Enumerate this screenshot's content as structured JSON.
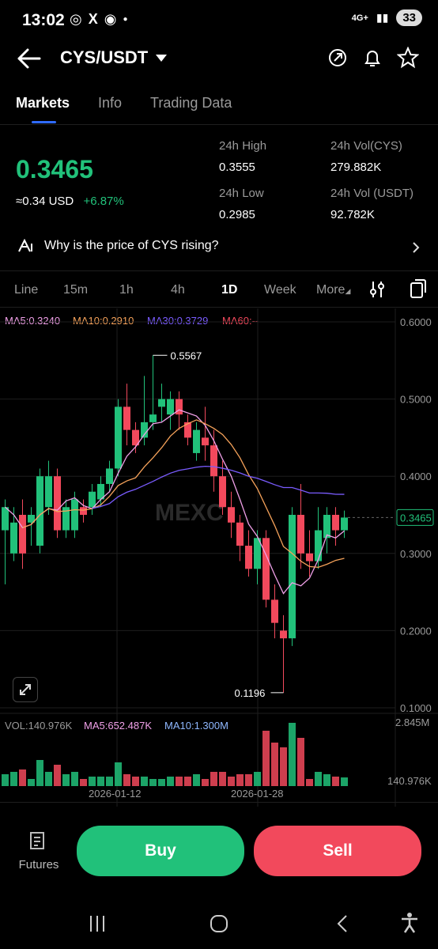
{
  "status": {
    "time": "13:02",
    "network": "4G+",
    "battery": "33"
  },
  "header": {
    "pair": "CYS/USDT"
  },
  "tabs": [
    {
      "label": "Markets"
    },
    {
      "label": "Info"
    },
    {
      "label": "Trading Data"
    }
  ],
  "price": {
    "last": "0.3465",
    "usd": "≈0.34 USD",
    "change": "+6.87%"
  },
  "stats": {
    "high_label": "24h High",
    "high": "0.3555",
    "low_label": "24h Low",
    "low": "0.2985",
    "vol_base_label": "24h Vol(CYS)",
    "vol_base": "279.882K",
    "vol_quote_label": "24h Vol (USDT)",
    "vol_quote": "92.782K"
  },
  "why_text": "Why is the price of CYS rising?",
  "timeframes": [
    {
      "label": "Line"
    },
    {
      "label": "15m"
    },
    {
      "label": "1h"
    },
    {
      "label": "4h"
    },
    {
      "label": "1D"
    },
    {
      "label": "Week"
    },
    {
      "label": "More"
    }
  ],
  "ma": {
    "ma5": "MA5:0.3240",
    "ma10": "MA10:0.2910",
    "ma30": "MA30:0.3729",
    "ma60": "MA60:--"
  },
  "watermark": "MEXC",
  "chart_data": {
    "type": "candlestick",
    "y_ticks": [
      "0.6000",
      "0.5000",
      "0.4000",
      "0.3000",
      "0.2000",
      "0.1000"
    ],
    "ylim": [
      0.1,
      0.6
    ],
    "high_annotation": "0.5567",
    "low_annotation": "0.1196",
    "last_price": "0.3465",
    "x_ticks": [
      "2026-01-12",
      "2026-01-28"
    ],
    "colors": {
      "up": "#21c17a",
      "down": "#f2495c",
      "ma5": "#f0a0e8",
      "ma10": "#f5a25a",
      "ma30": "#7a5cff"
    },
    "candles": [
      [
        0.33,
        0.36,
        0.26,
        0.37
      ],
      [
        0.3,
        0.34,
        0.29,
        0.36
      ],
      [
        0.35,
        0.3,
        0.28,
        0.37
      ],
      [
        0.34,
        0.35,
        0.31,
        0.36
      ],
      [
        0.31,
        0.4,
        0.3,
        0.41
      ],
      [
        0.36,
        0.4,
        0.35,
        0.42
      ],
      [
        0.4,
        0.33,
        0.32,
        0.41
      ],
      [
        0.33,
        0.36,
        0.32,
        0.37
      ],
      [
        0.33,
        0.37,
        0.32,
        0.38
      ],
      [
        0.36,
        0.35,
        0.34,
        0.37
      ],
      [
        0.36,
        0.38,
        0.35,
        0.39
      ],
      [
        0.37,
        0.39,
        0.36,
        0.4
      ],
      [
        0.39,
        0.41,
        0.38,
        0.42
      ],
      [
        0.41,
        0.49,
        0.4,
        0.5
      ],
      [
        0.49,
        0.46,
        0.44,
        0.52
      ],
      [
        0.46,
        0.44,
        0.43,
        0.47
      ],
      [
        0.45,
        0.47,
        0.44,
        0.53
      ],
      [
        0.47,
        0.48,
        0.46,
        0.5567
      ],
      [
        0.49,
        0.5,
        0.47,
        0.52
      ],
      [
        0.48,
        0.5,
        0.46,
        0.51
      ],
      [
        0.5,
        0.48,
        0.46,
        0.51
      ],
      [
        0.47,
        0.45,
        0.44,
        0.48
      ],
      [
        0.43,
        0.46,
        0.42,
        0.47
      ],
      [
        0.45,
        0.44,
        0.42,
        0.49
      ],
      [
        0.44,
        0.4,
        0.38,
        0.46
      ],
      [
        0.4,
        0.36,
        0.35,
        0.42
      ],
      [
        0.36,
        0.34,
        0.32,
        0.38
      ],
      [
        0.34,
        0.31,
        0.29,
        0.35
      ],
      [
        0.31,
        0.28,
        0.27,
        0.33
      ],
      [
        0.28,
        0.32,
        0.26,
        0.33
      ],
      [
        0.32,
        0.24,
        0.23,
        0.33
      ],
      [
        0.24,
        0.21,
        0.19,
        0.26
      ],
      [
        0.2,
        0.19,
        0.1196,
        0.22
      ],
      [
        0.19,
        0.35,
        0.18,
        0.36
      ],
      [
        0.35,
        0.3,
        0.28,
        0.39
      ],
      [
        0.3,
        0.29,
        0.27,
        0.33
      ],
      [
        0.29,
        0.33,
        0.28,
        0.36
      ],
      [
        0.32,
        0.35,
        0.3,
        0.36
      ],
      [
        0.35,
        0.33,
        0.31,
        0.36
      ],
      [
        0.33,
        0.3465,
        0.32,
        0.3555
      ]
    ],
    "volume": {
      "label": "VOL:140.976K",
      "ma5": "MA5:652.487K",
      "ma10": "MA10:1.300M",
      "max": "2.845M",
      "current": "140.976K"
    }
  },
  "bottom": {
    "futures": "Futures",
    "buy": "Buy",
    "sell": "Sell"
  }
}
